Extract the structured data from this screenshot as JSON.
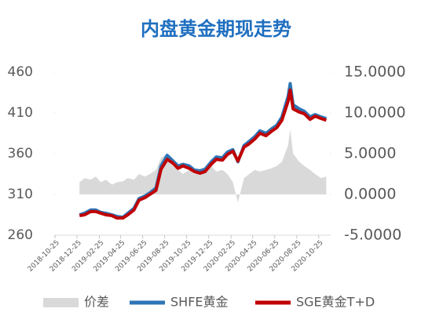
{
  "chart_data": {
    "type": "line",
    "title": "内盘黄金期现走势",
    "x": [
      "2019-01-01",
      "2019-01-15",
      "2019-02-01",
      "2019-02-15",
      "2019-03-01",
      "2019-03-15",
      "2019-04-01",
      "2019-04-15",
      "2019-05-01",
      "2019-05-15",
      "2019-06-01",
      "2019-06-15",
      "2019-07-01",
      "2019-07-15",
      "2019-08-01",
      "2019-08-15",
      "2019-09-01",
      "2019-09-15",
      "2019-10-01",
      "2019-10-15",
      "2019-11-01",
      "2019-11-15",
      "2019-12-01",
      "2019-12-15",
      "2020-01-01",
      "2020-01-15",
      "2020-02-01",
      "2020-02-15",
      "2020-03-01",
      "2020-03-15",
      "2020-04-01",
      "2020-04-15",
      "2020-05-01",
      "2020-05-15",
      "2020-06-01",
      "2020-06-15",
      "2020-07-01",
      "2020-07-15",
      "2020-08-01",
      "2020-08-07",
      "2020-08-15",
      "2020-09-01",
      "2020-09-15",
      "2020-10-01",
      "2020-10-15",
      "2020-11-01",
      "2020-11-15"
    ],
    "series": [
      {
        "name": "价差",
        "color": "#d9d9d9",
        "axis": "y2",
        "kind": "area",
        "values": [
          1.5,
          2,
          1.8,
          2.2,
          1.5,
          1.8,
          1.2,
          1.5,
          1.6,
          2,
          1.8,
          2.5,
          2.2,
          2.5,
          3,
          4.5,
          5,
          3.5,
          3,
          2.5,
          3,
          2.5,
          2.8,
          3,
          3.5,
          2.8,
          3,
          2.5,
          1.5,
          -1,
          2,
          2.5,
          3,
          2.8,
          3,
          3.2,
          3.5,
          4,
          6,
          8,
          5,
          4,
          3.5,
          3,
          2.5,
          2,
          2.2
        ]
      },
      {
        "name": "SHFE黄金",
        "color": "#2e75b6",
        "values": [
          285,
          287,
          291,
          291,
          288,
          287,
          285,
          283,
          282,
          287,
          293,
          305,
          308,
          312,
          318,
          345,
          358,
          352,
          345,
          347,
          345,
          340,
          339,
          341,
          350,
          356,
          355,
          362,
          365,
          350,
          370,
          375,
          381,
          388,
          385,
          390,
          395,
          405,
          430,
          446,
          420,
          415,
          412,
          405,
          408,
          405,
          403
        ]
      },
      {
        "name": "SGE黄金T+D",
        "color": "#c00000",
        "values": [
          284,
          285,
          289,
          289,
          287,
          285,
          284,
          281,
          281,
          285,
          291,
          303,
          306,
          310,
          315,
          341,
          353,
          349,
          342,
          345,
          342,
          338,
          336,
          338,
          347,
          353,
          352,
          359,
          363,
          351,
          368,
          372,
          378,
          385,
          382,
          387,
          392,
          401,
          424,
          438,
          415,
          411,
          409,
          402,
          406,
          403,
          401
        ]
      }
    ],
    "xlim": [
      "2018-10-25",
      "2020-11-25"
    ],
    "xticks": [
      "2018-10-25",
      "2018-12-25",
      "2019-02-25",
      "2019-04-25",
      "2019-06-25",
      "2019-08-25",
      "2019-10-25",
      "2019-12-25",
      "2020-02-25",
      "2020-04-25",
      "2020-06-25",
      "2020-08-25",
      "2020-10-25"
    ],
    "ylim": [
      260,
      460
    ],
    "yticks": [
      260,
      310,
      360,
      410,
      460
    ],
    "y2lim": [
      -5,
      15
    ],
    "y2ticks": [
      {
        "value": -5,
        "label": "-5.0000"
      },
      {
        "value": 0,
        "label": "0.0000"
      },
      {
        "value": 5,
        "label": "5.0000"
      },
      {
        "value": 10,
        "label": "10.0000"
      },
      {
        "value": 15,
        "label": "15.0000"
      }
    ],
    "legend": "bottom"
  }
}
